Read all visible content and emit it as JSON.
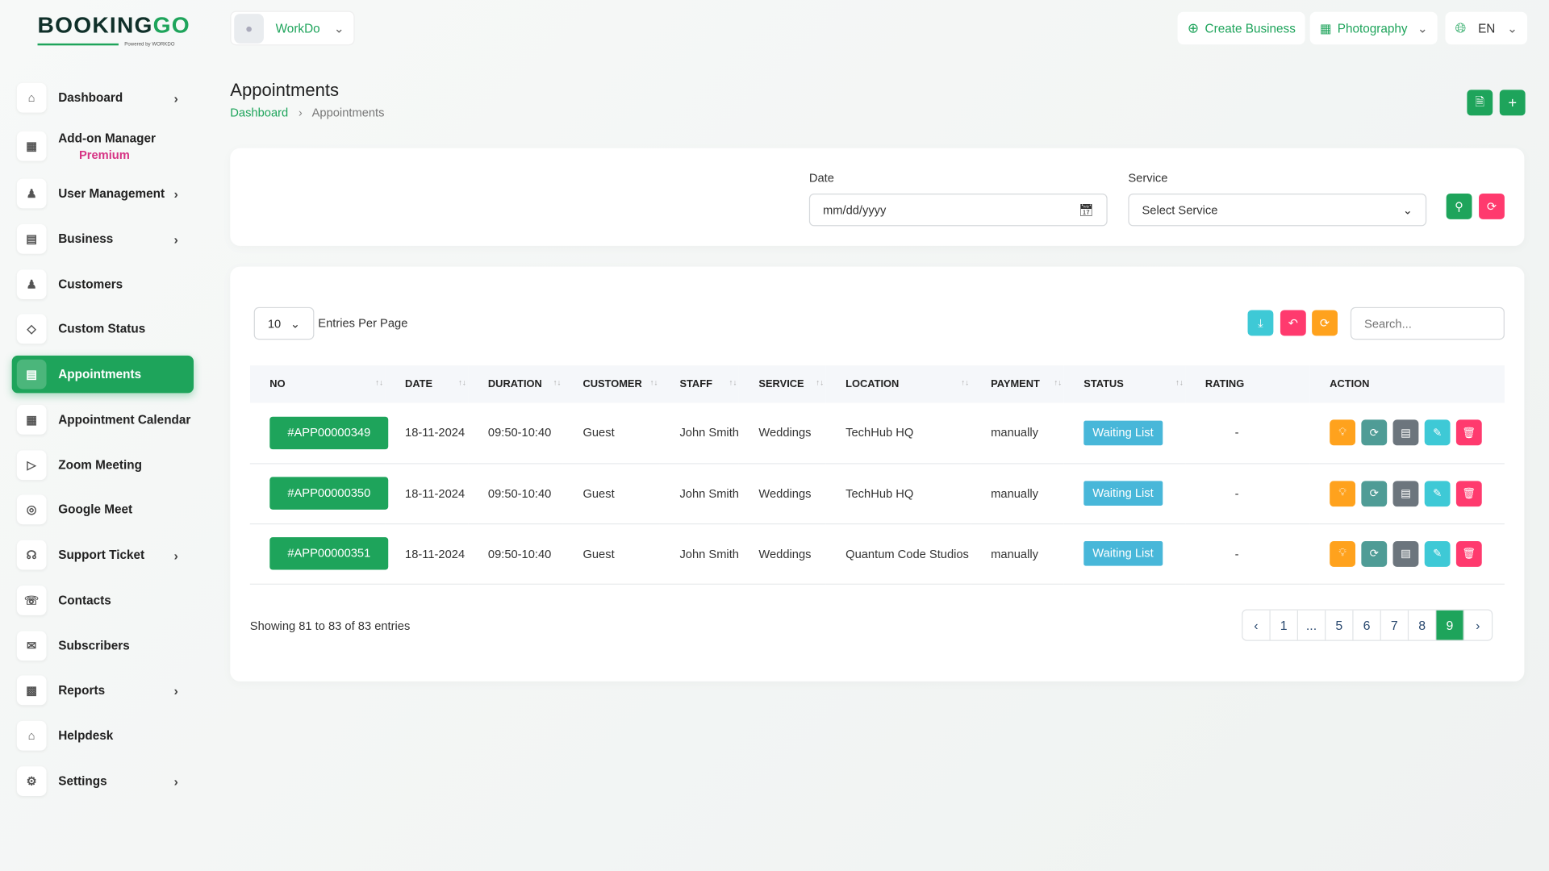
{
  "brand": {
    "logo_main": "BOOKING",
    "logo_accent": "GO",
    "powered": "Powered by WORKDO",
    "accent": "#1ea45b"
  },
  "header": {
    "workspace": "WorkDo",
    "create_business": "Create Business",
    "business_type": "Photography",
    "language": "EN"
  },
  "sidebar": {
    "items": [
      {
        "label": "Dashboard",
        "icon": "home-icon",
        "chevron": true
      },
      {
        "label": "Add-on Manager",
        "badge": "Premium",
        "icon": "grid-icon",
        "chevron": false
      },
      {
        "label": "User Management",
        "icon": "users-icon",
        "chevron": true
      },
      {
        "label": "Business",
        "icon": "briefcase-icon",
        "chevron": true
      },
      {
        "label": "Customers",
        "icon": "user-icon",
        "chevron": false
      },
      {
        "label": "Custom Status",
        "icon": "tag-icon",
        "chevron": false
      },
      {
        "label": "Appointments",
        "icon": "appointments-icon",
        "chevron": false,
        "active": true
      },
      {
        "label": "Appointment Calendar",
        "icon": "calendar-icon",
        "chevron": false
      },
      {
        "label": "Zoom Meeting",
        "icon": "video-icon",
        "chevron": false
      },
      {
        "label": "Google Meet",
        "icon": "meet-icon",
        "chevron": false
      },
      {
        "label": "Support Ticket",
        "icon": "headset-icon",
        "chevron": true
      },
      {
        "label": "Contacts",
        "icon": "phone-icon",
        "chevron": false
      },
      {
        "label": "Subscribers",
        "icon": "mail-icon",
        "chevron": false
      },
      {
        "label": "Reports",
        "icon": "chart-icon",
        "chevron": true
      },
      {
        "label": "Helpdesk",
        "icon": "helpdesk-icon",
        "chevron": false
      },
      {
        "label": "Settings",
        "icon": "gear-icon",
        "chevron": true
      }
    ]
  },
  "page": {
    "title": "Appointments",
    "breadcrumb": [
      "Dashboard",
      "Appointments"
    ]
  },
  "filter": {
    "date_label": "Date",
    "date_placeholder": "mm/dd/yyyy",
    "service_label": "Service",
    "service_value": "Select Service"
  },
  "table": {
    "entries": "10",
    "entries_label": "Entries Per Page",
    "search_placeholder": "Search...",
    "columns": [
      "NO",
      "DATE",
      "DURATION",
      "CUSTOMER",
      "STAFF",
      "SERVICE",
      "LOCATION",
      "PAYMENT",
      "STATUS",
      "RATING",
      "ACTION"
    ],
    "rows": [
      {
        "no": "#APP00000349",
        "date": "18-11-2024",
        "duration": "09:50-10:40",
        "customer": "Guest",
        "staff": "John Smith",
        "service": "Weddings",
        "location": "TechHub HQ",
        "payment": "manually",
        "status": "Waiting List",
        "rating": "-"
      },
      {
        "no": "#APP00000350",
        "date": "18-11-2024",
        "duration": "09:50-10:40",
        "customer": "Guest",
        "staff": "John Smith",
        "service": "Weddings",
        "location": "TechHub HQ",
        "payment": "manually",
        "status": "Waiting List",
        "rating": "-"
      },
      {
        "no": "#APP00000351",
        "date": "18-11-2024",
        "duration": "09:50-10:40",
        "customer": "Guest",
        "staff": "John Smith",
        "service": "Weddings",
        "location": "Quantum Code Studios",
        "payment": "manually",
        "status": "Waiting List",
        "rating": "-"
      }
    ],
    "showing": "Showing 81 to 83 of 83 entries",
    "pages": [
      "1",
      "...",
      "5",
      "6",
      "7",
      "8",
      "9"
    ],
    "current_page": "9"
  }
}
